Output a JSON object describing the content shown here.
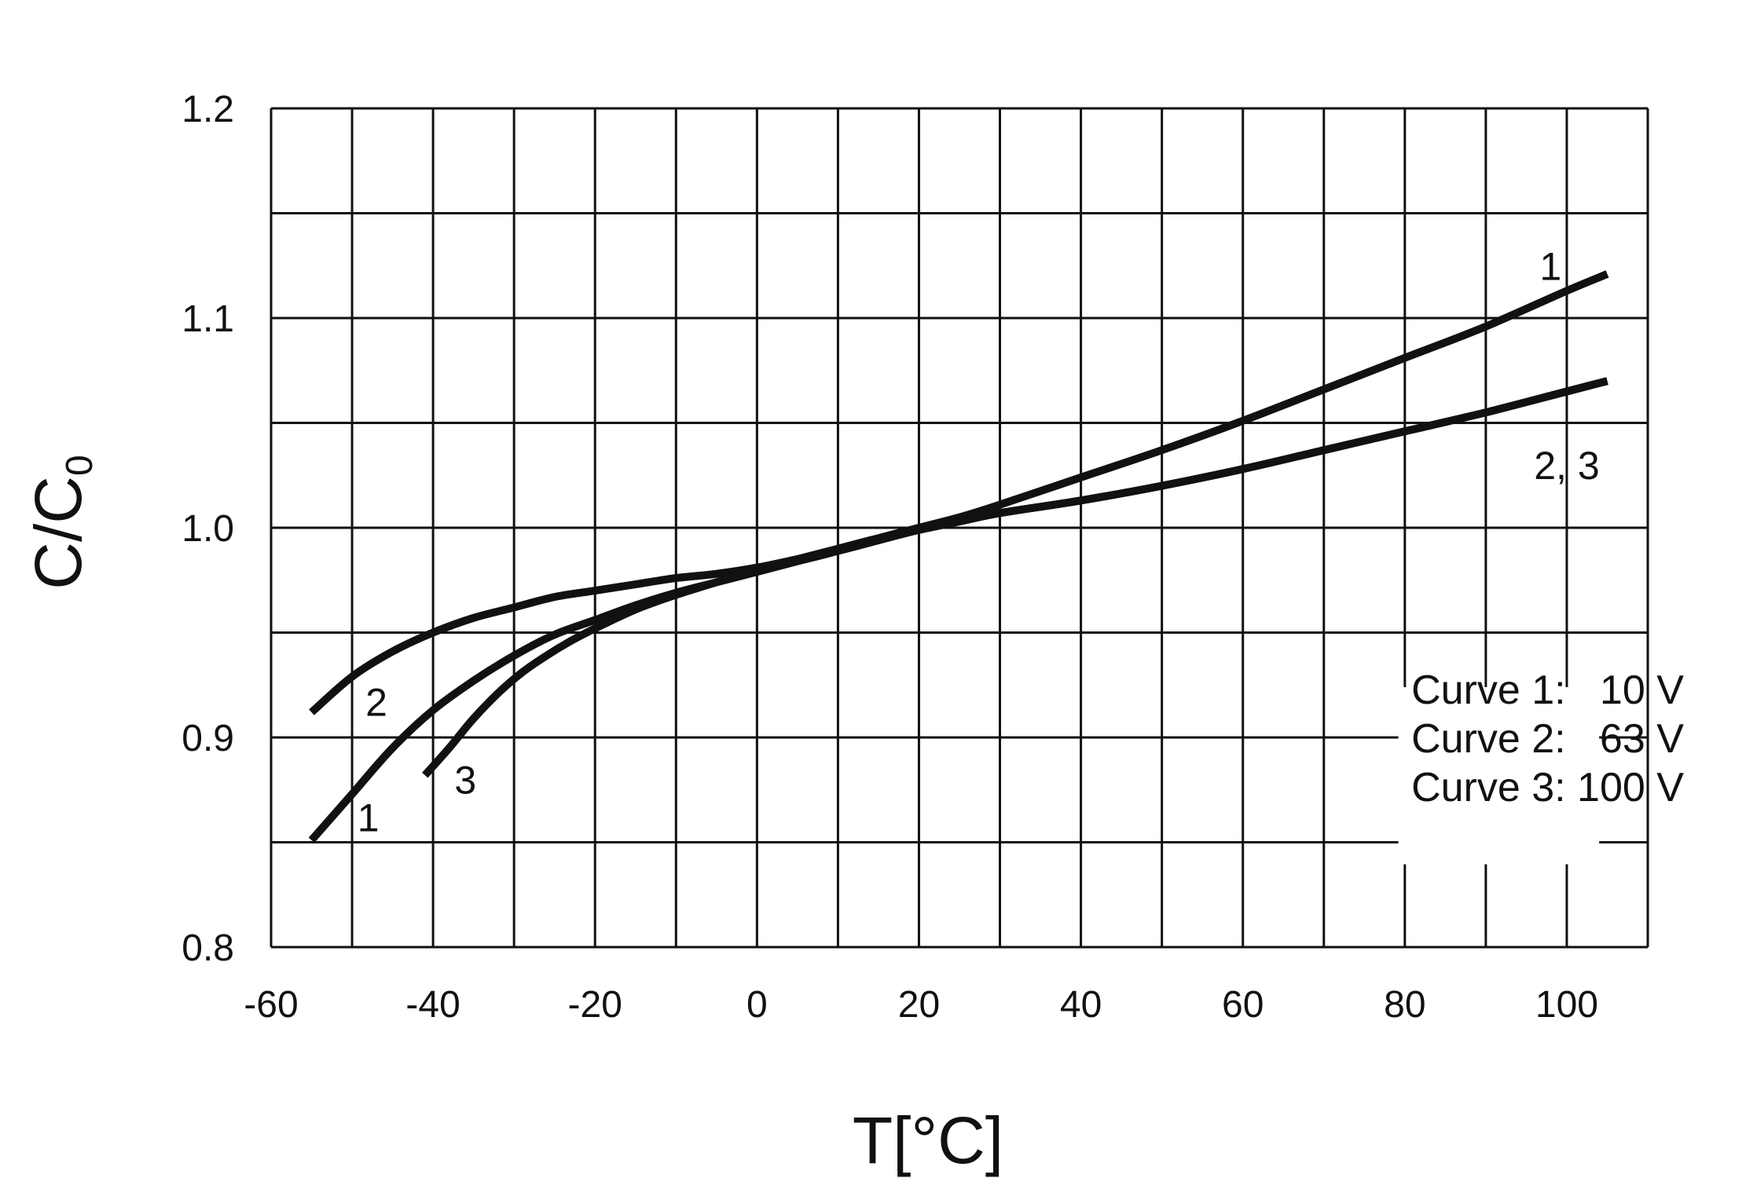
{
  "chart_data": {
    "type": "line",
    "title": "",
    "xlabel": "T[°C]",
    "ylabel": "C/C",
    "ylabel_subscript": "0",
    "xlim": [
      -60,
      110
    ],
    "ylim": [
      0.8,
      1.2
    ],
    "grid": true,
    "x_ticks": [
      -60,
      -40,
      -20,
      0,
      20,
      40,
      60,
      80,
      100
    ],
    "x_tick_labels": [
      "-60",
      "-40",
      "-20",
      "0",
      "20",
      "40",
      "60",
      "80",
      "100"
    ],
    "x_grid": [
      -60,
      -50,
      -40,
      -30,
      -20,
      -10,
      0,
      10,
      20,
      30,
      40,
      50,
      60,
      70,
      80,
      90,
      100,
      110
    ],
    "y_ticks": [
      0.8,
      0.9,
      1.0,
      1.1,
      1.2
    ],
    "y_tick_labels": [
      "0.8",
      "0.9",
      "1.0",
      "1.1",
      "1.2"
    ],
    "y_grid": [
      0.8,
      0.85,
      0.9,
      0.95,
      1.0,
      1.05,
      1.1,
      1.15,
      1.2
    ],
    "series": [
      {
        "label": "1",
        "x": [
          -55,
          -50,
          -45,
          -40,
          -35,
          -30,
          -25,
          -20,
          -15,
          -10,
          -5,
          0,
          5,
          10,
          15,
          20,
          25,
          30,
          40,
          50,
          60,
          70,
          80,
          90,
          100,
          105
        ],
        "y": [
          0.851,
          0.873,
          0.895,
          0.913,
          0.927,
          0.939,
          0.949,
          0.956,
          0.963,
          0.969,
          0.974,
          0.979,
          0.984,
          0.989,
          0.995,
          1.0,
          1.005,
          1.011,
          1.024,
          1.037,
          1.051,
          1.066,
          1.081,
          1.096,
          1.113,
          1.121
        ],
        "label_x": -48,
        "label_y": 0.862
      },
      {
        "label": "2",
        "x": [
          -55,
          -50,
          -45,
          -40,
          -35,
          -30,
          -25,
          -20,
          -15,
          -10,
          -5,
          0,
          5,
          10,
          15,
          20,
          25,
          30,
          40,
          50,
          60,
          70,
          80,
          90,
          100,
          105
        ],
        "y": [
          0.912,
          0.929,
          0.941,
          0.95,
          0.957,
          0.962,
          0.967,
          0.97,
          0.973,
          0.976,
          0.978,
          0.981,
          0.985,
          0.989,
          0.994,
          0.999,
          1.003,
          1.007,
          1.013,
          1.02,
          1.028,
          1.037,
          1.046,
          1.055,
          1.065,
          1.07
        ],
        "label_x": -47,
        "label_y": 0.917
      },
      {
        "label": "3",
        "x": [
          -41,
          -38,
          -35,
          -32,
          -29,
          -26,
          -23,
          -20,
          -15,
          -10,
          -5,
          0,
          5,
          10,
          15,
          20,
          25,
          30,
          40,
          50,
          60,
          70,
          80,
          90,
          100,
          105
        ],
        "y": [
          0.882,
          0.895,
          0.909,
          0.921,
          0.931,
          0.939,
          0.946,
          0.952,
          0.961,
          0.968,
          0.974,
          0.98,
          0.985,
          0.99,
          0.995,
          0.999,
          1.003,
          1.007,
          1.013,
          1.02,
          1.028,
          1.037,
          1.046,
          1.055,
          1.065,
          1.07
        ],
        "label_x": -36,
        "label_y": 0.88
      }
    ],
    "extra_label": {
      "text": "2, 3",
      "x": 100,
      "y": 1.03
    },
    "legend": {
      "position": "lower-right",
      "entries": [
        "Curve 1:   10 V",
        "Curve 2:   63 V",
        "Curve 3: 100 V"
      ]
    }
  }
}
